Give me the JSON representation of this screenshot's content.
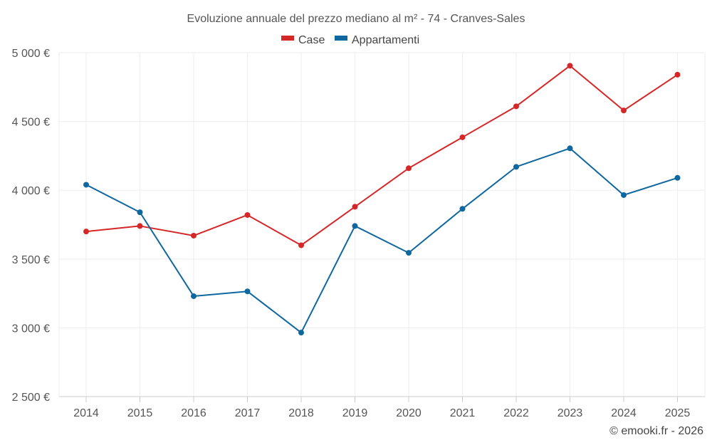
{
  "chart_data": {
    "type": "line",
    "title": "Evoluzione annuale del prezzo mediano al m² - 74 - Cranves-Sales",
    "xlabel": "",
    "ylabel": "",
    "categories": [
      "2014",
      "2015",
      "2016",
      "2017",
      "2018",
      "2019",
      "2020",
      "2021",
      "2022",
      "2023",
      "2024",
      "2025"
    ],
    "ylim": [
      2500,
      5000
    ],
    "yticks": [
      2500,
      3000,
      3500,
      4000,
      4500,
      5000
    ],
    "ytick_labels": [
      "2 500 €",
      "3 000 €",
      "3 500 €",
      "4 000 €",
      "4 500 €",
      "5 000 €"
    ],
    "grid": true,
    "legend_position": "top-center",
    "series": [
      {
        "name": "Case",
        "color": "#d62728",
        "values": [
          3700,
          3740,
          3670,
          3820,
          3600,
          3880,
          4160,
          4385,
          4610,
          4905,
          4580,
          4840
        ]
      },
      {
        "name": "Appartamenti",
        "color": "#0f67a0",
        "values": [
          4040,
          3840,
          3230,
          3265,
          2965,
          3740,
          3545,
          3865,
          4170,
          4305,
          3965,
          4090
        ]
      }
    ]
  },
  "credit": "© emooki.fr - 2026"
}
